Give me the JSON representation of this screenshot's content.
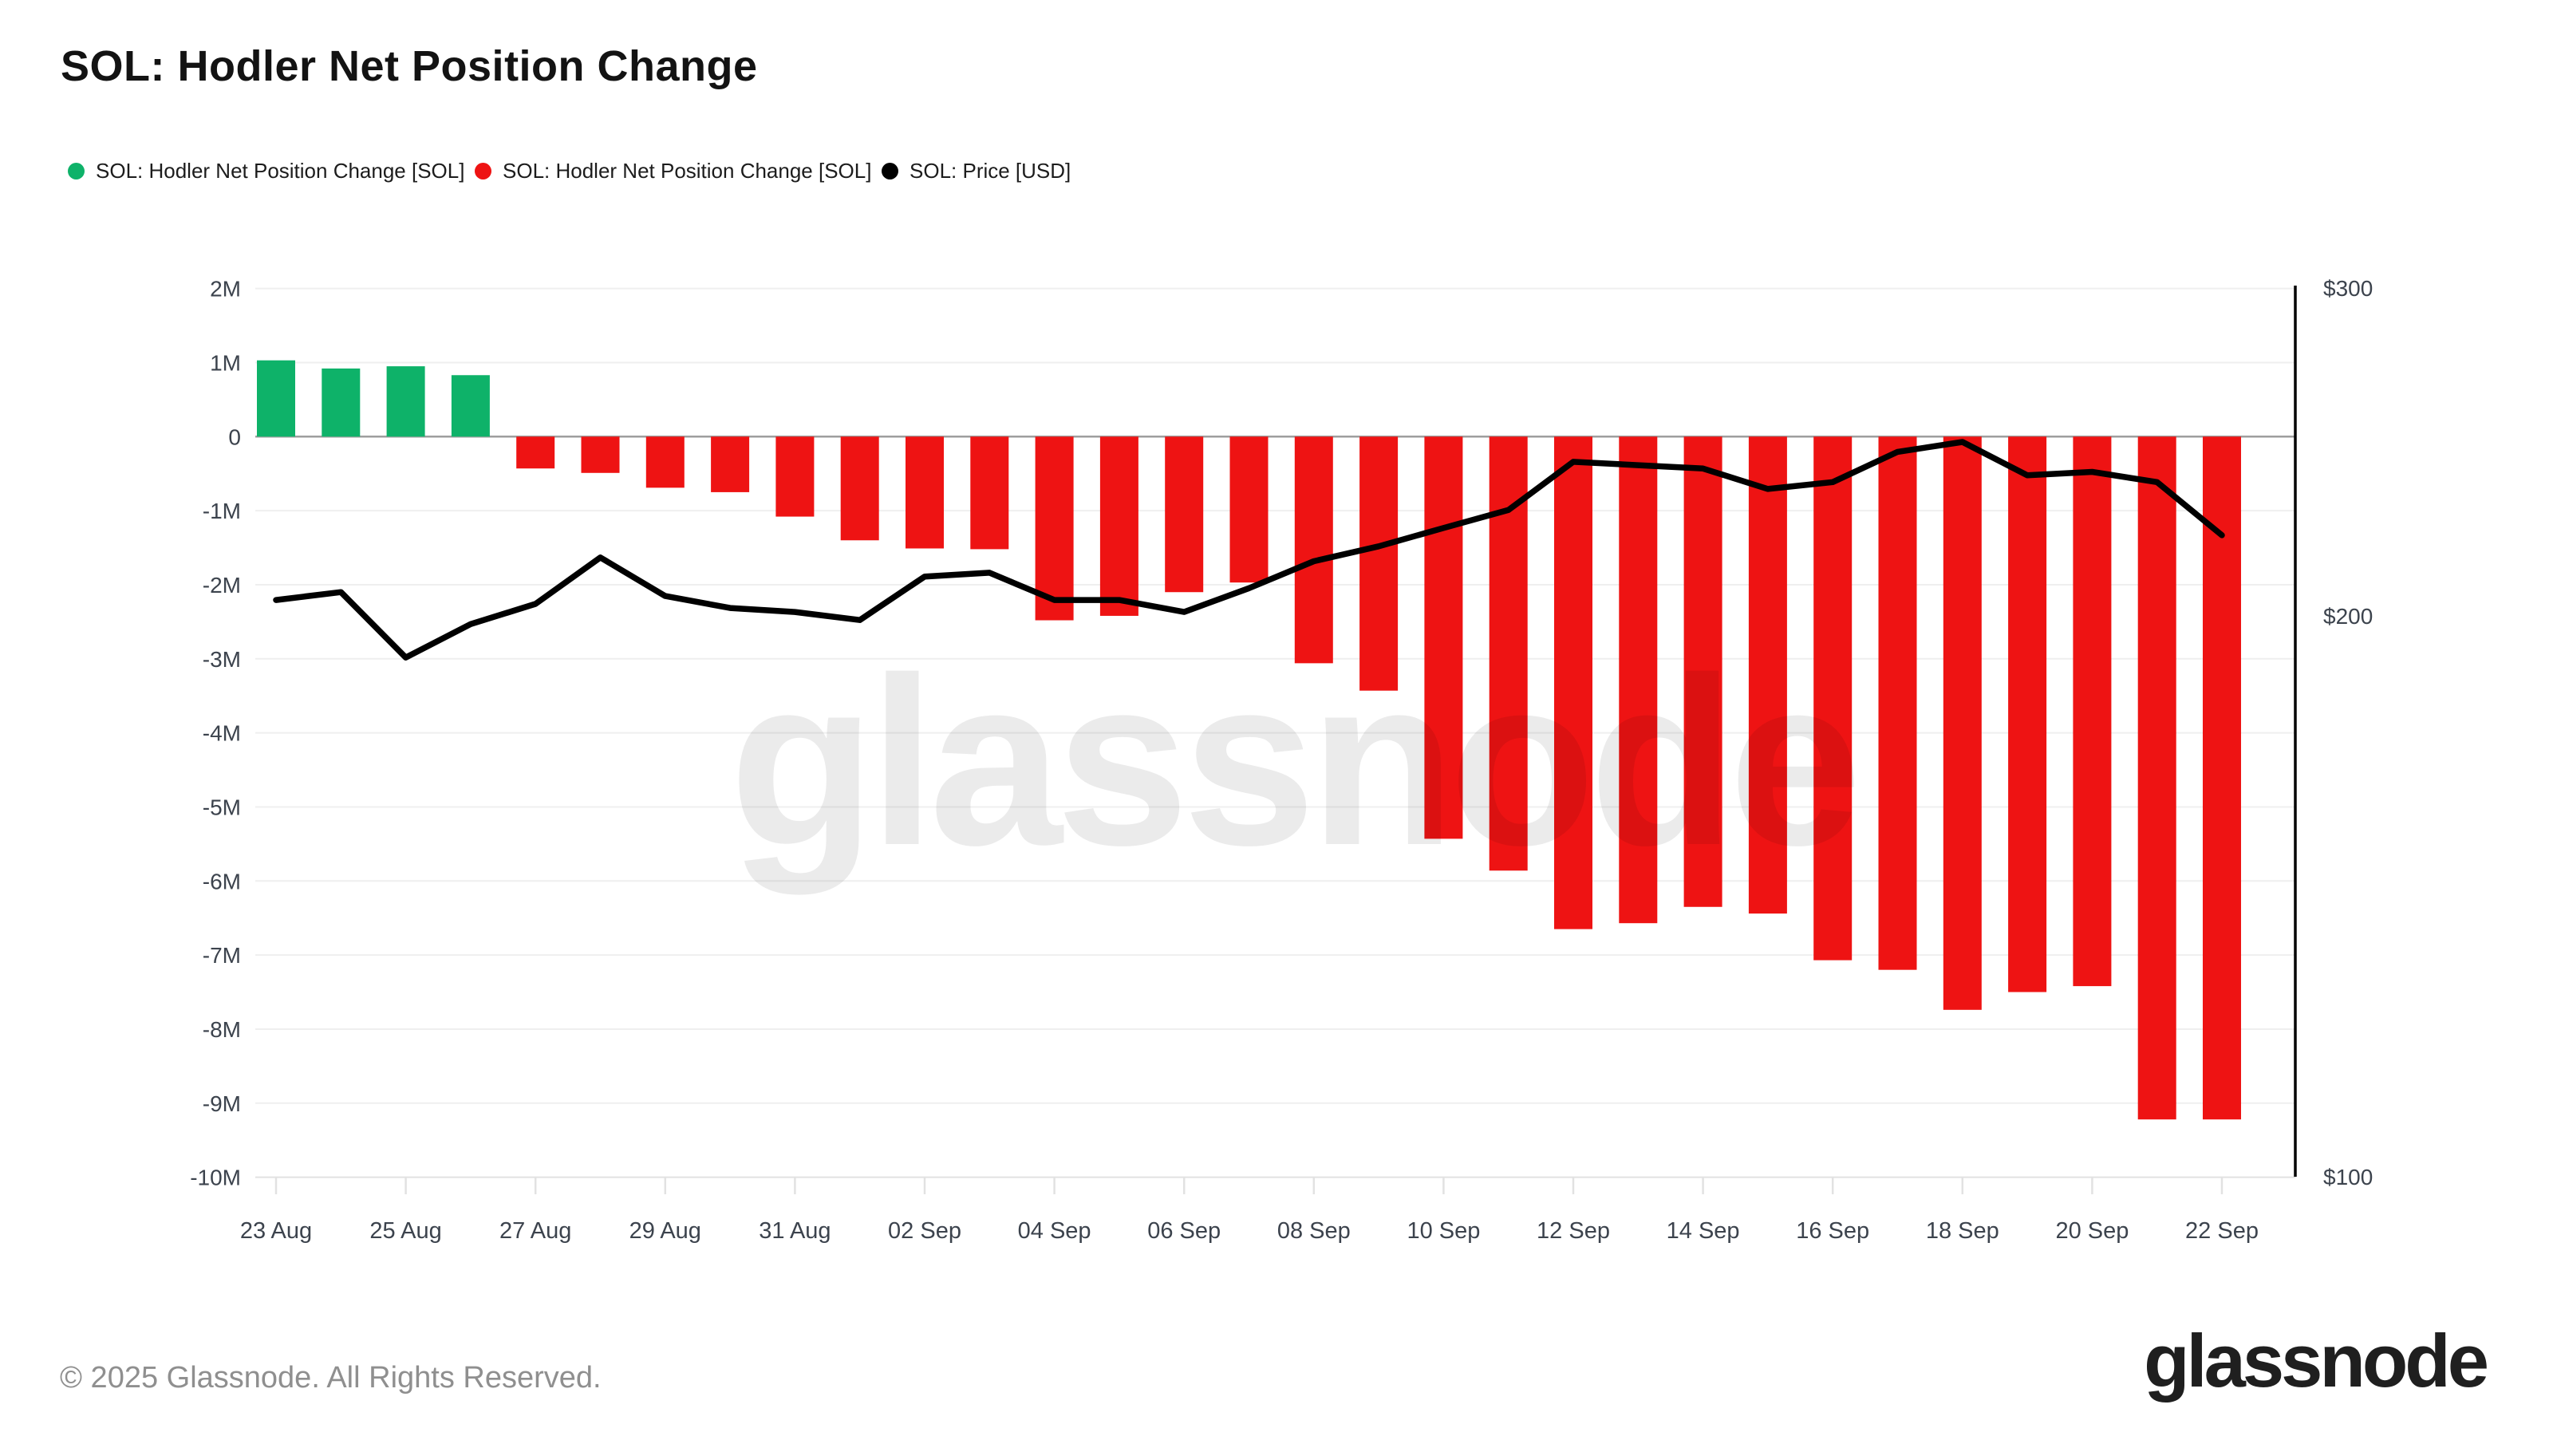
{
  "header": {
    "title": "SOL: Hodler Net Position Change"
  },
  "legend": [
    {
      "label": "SOL: Hodler Net Position Change [SOL]",
      "color": "#0eb269",
      "x": 85
    },
    {
      "label": "SOL: Hodler Net Position Change [SOL]",
      "color": "#ee1313",
      "x": 595
    },
    {
      "label": "SOL: Price [USD]",
      "color": "#000000",
      "x": 1105
    }
  ],
  "watermark": {
    "text": "glassnode",
    "color": "#000000",
    "opacity": 0.075
  },
  "footer": {
    "copyright": "© 2025 Glassnode. All Rights Reserved.",
    "brand": "glassnode"
  },
  "colors": {
    "positive_bar": "#0eb269",
    "negative_bar": "#ee1313",
    "price_line": "#000000",
    "zero_line": "#9e9e9e",
    "gridline": "#efefef",
    "axis_line": "#e2e2e2",
    "axis_text": "#3c434d",
    "right_spine": "#000000"
  },
  "chart_data": {
    "type": "bar+line",
    "title": "SOL: Hodler Net Position Change",
    "categories": [
      "23 Aug",
      "24 Aug",
      "25 Aug",
      "26 Aug",
      "27 Aug",
      "28 Aug",
      "29 Aug",
      "30 Aug",
      "31 Aug",
      "01 Sep",
      "02 Sep",
      "03 Sep",
      "04 Sep",
      "05 Sep",
      "06 Sep",
      "07 Sep",
      "08 Sep",
      "09 Sep",
      "10 Sep",
      "11 Sep",
      "12 Sep",
      "13 Sep",
      "14 Sep",
      "15 Sep",
      "16 Sep",
      "17 Sep",
      "18 Sep",
      "19 Sep",
      "20 Sep",
      "21 Sep",
      "22 Sep"
    ],
    "series": [
      {
        "name": "SOL: Hodler Net Position Change [SOL]",
        "type": "bar",
        "axis": "left",
        "unit": "M SOL",
        "values_millions": [
          1.03,
          0.92,
          0.95,
          0.83,
          -0.43,
          -0.49,
          -0.69,
          -0.75,
          -1.08,
          -1.4,
          -1.51,
          -1.52,
          -2.48,
          -2.42,
          -2.1,
          -1.97,
          -3.06,
          -3.43,
          -5.43,
          -5.86,
          -6.65,
          -6.57,
          -6.35,
          -6.44,
          -7.07,
          -7.2,
          -7.74,
          -7.5,
          -7.42,
          -9.22,
          -9.22
        ]
      },
      {
        "name": "SOL: Price [USD]",
        "type": "line",
        "axis": "right",
        "unit": "USD",
        "values_usd": [
          204,
          206,
          190,
          198,
          203,
          215,
          205,
          202,
          201,
          199,
          210,
          211,
          204,
          204,
          201,
          207,
          214,
          218,
          223,
          228,
          242,
          241,
          240,
          234,
          236,
          245,
          248,
          238,
          239,
          236,
          221
        ]
      }
    ],
    "x_tick_labels": [
      "23 Aug",
      "25 Aug",
      "27 Aug",
      "29 Aug",
      "31 Aug",
      "02 Sep",
      "04 Sep",
      "06 Sep",
      "08 Sep",
      "10 Sep",
      "12 Sep",
      "14 Sep",
      "16 Sep",
      "18 Sep",
      "20 Sep",
      "22 Sep"
    ],
    "left_axis": {
      "tick_labels": [
        "2M",
        "1M",
        "0",
        "-1M",
        "-2M",
        "-3M",
        "-4M",
        "-5M",
        "-6M",
        "-7M",
        "-8M",
        "-9M",
        "-10M"
      ],
      "tick_values_millions": [
        2,
        1,
        0,
        -1,
        -2,
        -3,
        -4,
        -5,
        -6,
        -7,
        -8,
        -9,
        -10
      ],
      "range_millions": [
        -10,
        2
      ]
    },
    "right_axis": {
      "tick_labels": [
        "$300",
        "$200",
        "$100"
      ],
      "tick_values": [
        300,
        200,
        100
      ],
      "scale": "log",
      "range": [
        100,
        300
      ]
    },
    "grid": true,
    "legend_position": "top-left"
  }
}
